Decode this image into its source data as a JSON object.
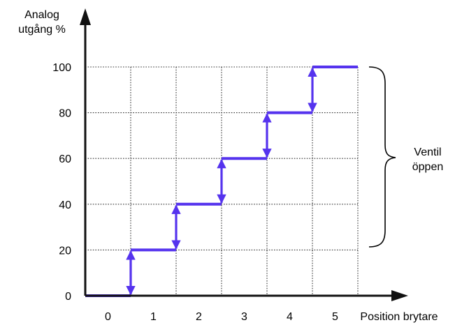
{
  "chart_data": {
    "type": "line",
    "title": "",
    "ylabel_lines": [
      "Analog",
      "utgång %"
    ],
    "xlabel": "Position brytare",
    "x_tick_labels": [
      "0",
      "1",
      "2",
      "3",
      "4",
      "5"
    ],
    "y_tick_labels": [
      "0",
      "20",
      "40",
      "60",
      "80",
      "100"
    ],
    "ylim": [
      0,
      100
    ],
    "grid": true,
    "series": [
      {
        "color": "#5533ee",
        "step_boundaries": [
          0.5,
          1.5,
          2.5,
          3.5,
          4.5
        ],
        "points": [
          {
            "x": -0.5,
            "y": 0
          },
          {
            "x": 0.5,
            "y": 0
          },
          {
            "x": 0.5,
            "y": 20
          },
          {
            "x": 1.5,
            "y": 20
          },
          {
            "x": 1.5,
            "y": 40
          },
          {
            "x": 2.5,
            "y": 40
          },
          {
            "x": 2.5,
            "y": 60
          },
          {
            "x": 3.5,
            "y": 60
          },
          {
            "x": 3.5,
            "y": 80
          },
          {
            "x": 4.5,
            "y": 80
          },
          {
            "x": 4.5,
            "y": 100
          },
          {
            "x": 5.5,
            "y": 100
          }
        ]
      }
    ],
    "annotation": {
      "lines": [
        "Ventil",
        "öppen"
      ],
      "y_range": [
        20,
        100
      ]
    }
  }
}
